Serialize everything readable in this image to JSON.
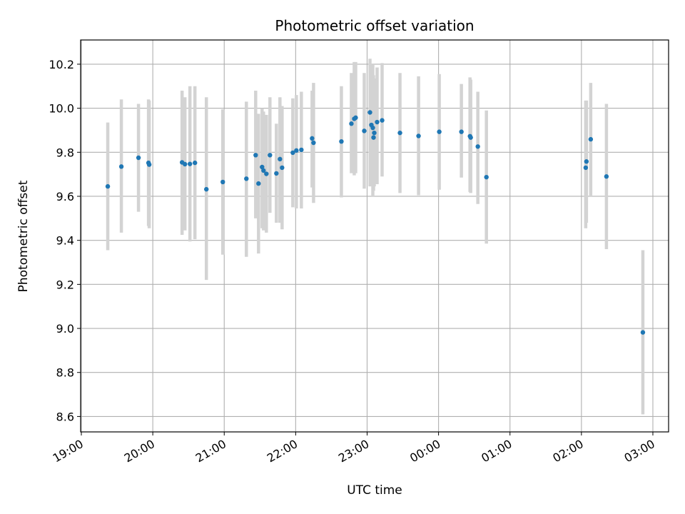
{
  "chart_data": {
    "type": "scatter",
    "title": "Photometric offset variation",
    "xlabel": "UTC time",
    "ylabel": "Photometric offset",
    "x_is_time": true,
    "x_ticks": [
      "19:00",
      "20:00",
      "21:00",
      "22:00",
      "23:00",
      "00:00",
      "01:00",
      "02:00",
      "03:00"
    ],
    "x_tick_hours": [
      19,
      20,
      21,
      22,
      23,
      24,
      25,
      26,
      27
    ],
    "xlim_hours": [
      18.99,
      27.22
    ],
    "y_ticks": [
      8.6,
      8.8,
      9.0,
      9.2,
      9.4,
      9.6,
      9.8,
      10.0,
      10.2
    ],
    "ylim": [
      8.53,
      10.31
    ],
    "grid": true,
    "colors": {
      "point": "#1f77b4",
      "errorbar": "#d3d3d3",
      "grid": "#b0b0b0"
    },
    "series": [
      {
        "x_hours": [
          19.37,
          19.56,
          19.8,
          19.94,
          19.95,
          20.41,
          20.45,
          20.52,
          20.59,
          20.75,
          20.98,
          21.31,
          21.44,
          21.48,
          21.53,
          21.55,
          21.59,
          21.64,
          21.73,
          21.78,
          21.81,
          21.96,
          22.01,
          22.08,
          22.23,
          22.25,
          22.64,
          22.78,
          22.82,
          22.84,
          22.96,
          23.04,
          23.06,
          23.08,
          23.09,
          23.1,
          23.14,
          23.21,
          23.46,
          23.72,
          24.01,
          24.32,
          24.44,
          24.45,
          24.55,
          24.67,
          26.06,
          26.07,
          26.13,
          26.35,
          26.86
        ],
        "y": [
          9.645,
          9.735,
          9.775,
          9.752,
          9.744,
          9.754,
          9.746,
          9.747,
          9.752,
          9.632,
          9.665,
          9.68,
          9.787,
          9.658,
          9.733,
          9.717,
          9.702,
          9.787,
          9.704,
          9.769,
          9.73,
          9.798,
          9.808,
          9.811,
          9.863,
          9.843,
          9.849,
          9.93,
          9.952,
          9.957,
          9.897,
          9.981,
          9.924,
          9.911,
          9.867,
          9.888,
          9.937,
          9.945,
          9.888,
          9.874,
          9.893,
          9.893,
          9.873,
          9.867,
          9.826,
          9.687,
          9.73,
          9.758,
          9.859,
          9.69,
          8.982
        ],
        "y_low": [
          9.355,
          9.435,
          9.53,
          9.465,
          9.455,
          9.425,
          9.445,
          9.395,
          9.405,
          9.22,
          9.335,
          9.325,
          9.5,
          9.34,
          9.455,
          9.445,
          9.435,
          9.525,
          9.48,
          9.48,
          9.45,
          9.55,
          9.545,
          9.545,
          9.64,
          9.57,
          9.595,
          9.705,
          9.695,
          9.705,
          9.635,
          9.645,
          9.72,
          9.6,
          9.625,
          9.645,
          9.655,
          9.69,
          9.615,
          9.605,
          9.63,
          9.685,
          9.62,
          9.615,
          9.565,
          9.385,
          9.455,
          9.48,
          9.6,
          9.36,
          8.61
        ],
        "y_high": [
          9.935,
          10.04,
          10.02,
          10.04,
          10.035,
          10.08,
          10.05,
          10.1,
          10.1,
          10.05,
          9.995,
          10.03,
          10.08,
          9.975,
          10.0,
          9.985,
          9.97,
          10.05,
          9.93,
          10.05,
          10.01,
          10.045,
          10.06,
          10.075,
          10.08,
          10.115,
          10.1,
          10.16,
          10.21,
          10.21,
          10.16,
          10.225,
          10.14,
          10.2,
          10.15,
          10.135,
          10.185,
          10.205,
          10.16,
          10.145,
          10.155,
          10.11,
          10.14,
          10.13,
          10.075,
          9.99,
          10.035,
          10.035,
          10.115,
          10.02,
          9.355
        ]
      }
    ]
  }
}
